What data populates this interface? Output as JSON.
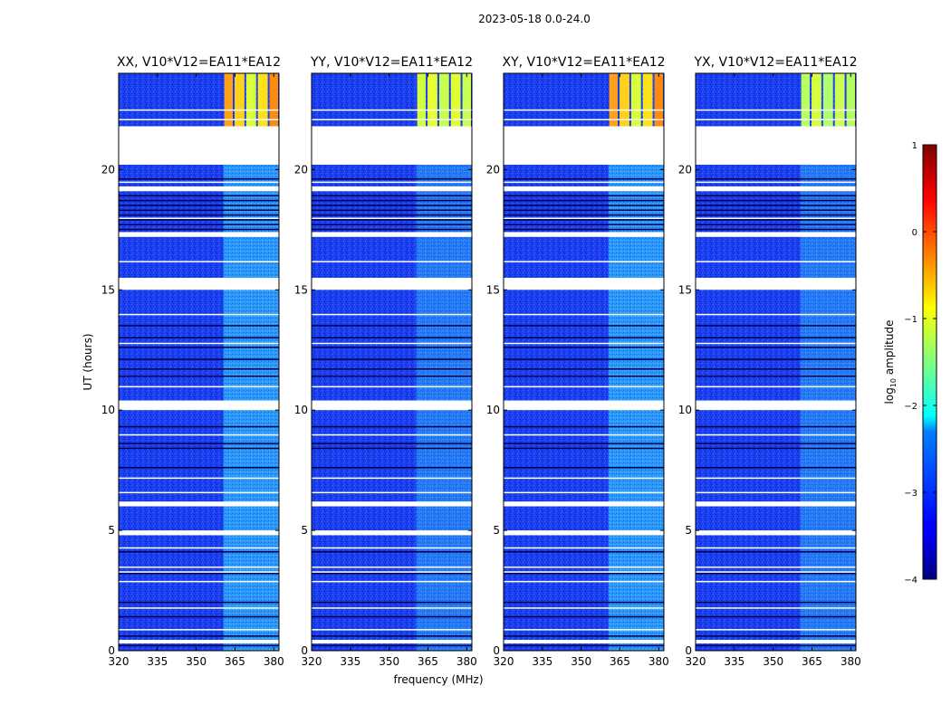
{
  "chart_data": {
    "type": "heatmap",
    "suptitle": "2023-05-18 0.0-24.0",
    "xlabel": "frequency (MHz)",
    "ylabel": "UT (hours)",
    "xlim": [
      320,
      382
    ],
    "ylim": [
      0,
      24
    ],
    "xticks": [
      320,
      335,
      350,
      365,
      380
    ],
    "yticks": [
      0,
      5,
      10,
      15,
      20
    ],
    "panels": [
      {
        "title": "XX, V10*V12=EA11*EA12"
      },
      {
        "title": "YY, V10*V12=EA11*EA12"
      },
      {
        "title": "XY, V10*V12=EA11*EA12"
      },
      {
        "title": "YX, V10*V12=EA11*EA12"
      }
    ],
    "colorbar": {
      "label": "log",
      "label_sub": "10",
      "label_rest": " amplitude",
      "range": [
        -4,
        1
      ],
      "ticks": [
        "1",
        "0",
        "−1",
        "−2",
        "−3",
        "−4"
      ],
      "colormap": "jet"
    },
    "rfi_bands_mhz": [
      [
        360.5,
        364.5
      ],
      [
        364.5,
        369
      ],
      [
        369,
        373.5
      ],
      [
        373.5,
        378
      ],
      [
        378,
        382
      ]
    ],
    "flagged_gaps_hours": [
      [
        20.2,
        21.8
      ],
      [
        15.0,
        15.5
      ],
      [
        17.2,
        17.4
      ],
      [
        19.1,
        19.3
      ],
      [
        10.0,
        10.4
      ],
      [
        6.0,
        6.2
      ],
      [
        4.8,
        5.0
      ],
      [
        0.3,
        0.45
      ]
    ],
    "black_lines_hours": [
      18.9,
      18.7,
      18.5,
      18.3,
      18.1,
      17.9,
      17.7,
      17.5,
      19.6,
      13.5,
      13.0,
      12.6,
      12.1,
      11.7,
      11.4,
      9.3,
      8.6,
      8.4,
      7.6,
      4.1,
      3.2,
      2.0,
      1.4,
      0.6,
      0.2
    ]
  }
}
